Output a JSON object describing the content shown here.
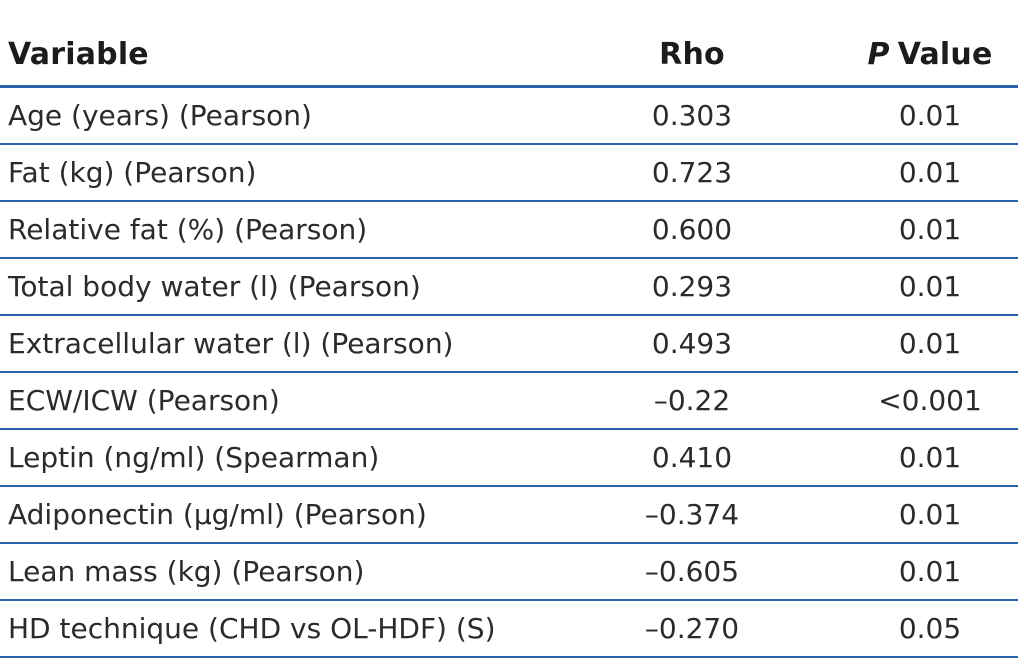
{
  "table": {
    "header": {
      "variable": "Variable",
      "rho": "Rho",
      "p_italic": "P",
      "p_rest": "Value"
    },
    "rows": [
      {
        "variable": "Age (years) (Pearson)",
        "rho": "0.303",
        "p": "0.01"
      },
      {
        "variable": "Fat (kg) (Pearson)",
        "rho": "0.723",
        "p": "0.01"
      },
      {
        "variable": "Relative fat (%) (Pearson)",
        "rho": "0.600",
        "p": "0.01"
      },
      {
        "variable": "Total body water (l) (Pearson)",
        "rho": "0.293",
        "p": "0.01"
      },
      {
        "variable": "Extracellular water (l) (Pearson)",
        "rho": "0.493",
        "p": "0.01"
      },
      {
        "variable": "ECW/ICW (Pearson)",
        "rho": "–0.22",
        "p": "<0.001"
      },
      {
        "variable": "Leptin (ng/ml) (Spearman)",
        "rho": "0.410",
        "p": "0.01"
      },
      {
        "variable": "Adiponectin (μg/ml) (Pearson)",
        "rho": "–0.374",
        "p": "0.01"
      },
      {
        "variable": "Lean mass (kg) (Pearson)",
        "rho": "–0.605",
        "p": "0.01"
      },
      {
        "variable": "HD technique (CHD vs OL-HDF) (S)",
        "rho": "–0.270",
        "p": "0.05"
      }
    ],
    "colors": {
      "rule_blue": "#2b61a8",
      "text": "#2b2b2b"
    }
  }
}
